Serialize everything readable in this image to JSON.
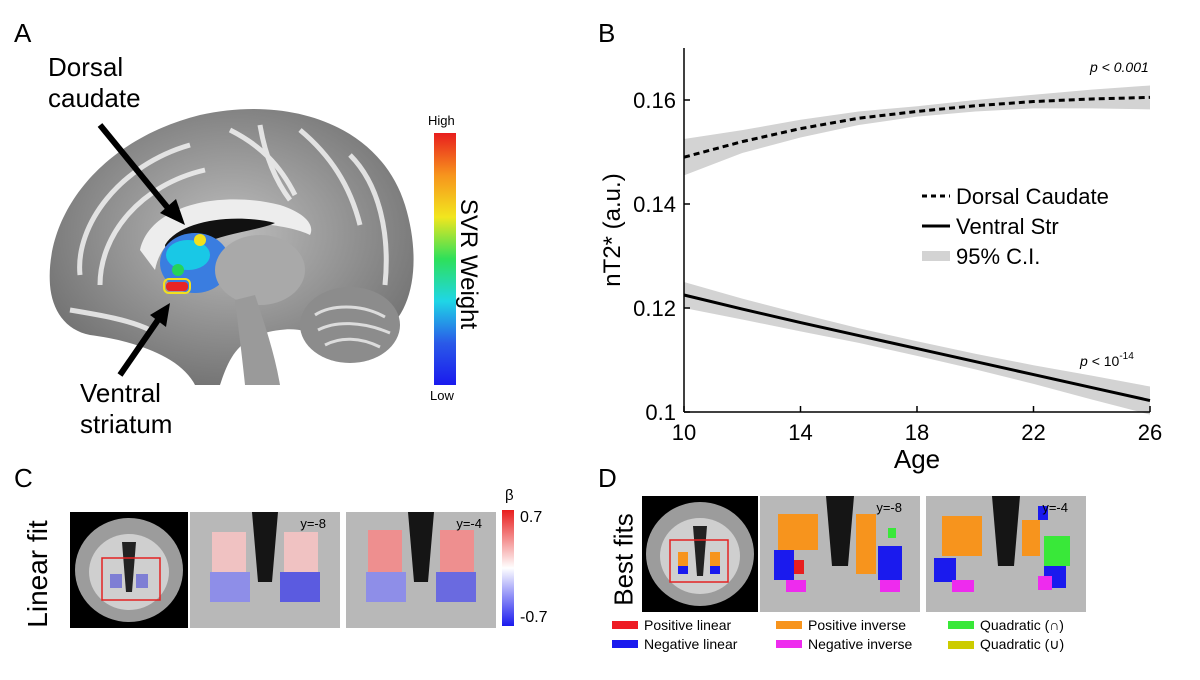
{
  "panels": {
    "a": {
      "letter": "A",
      "label_top_line1": "Dorsal",
      "label_top_line2": "caudate",
      "label_bottom_line1": "Ventral",
      "label_bottom_line2": "striatum",
      "colorbar_high": "High",
      "colorbar_low": "Low",
      "colorbar_title": "SVR Weight"
    },
    "b": {
      "letter": "B"
    },
    "c": {
      "letter": "C",
      "row_label": "Linear fit",
      "slice1": "y=-8",
      "slice2": "y=-4",
      "beta_symbol": "β",
      "beta_max": "0.7",
      "beta_min": "-0.7"
    },
    "d": {
      "letter": "D",
      "row_label": "Best fits",
      "slice1": "y=-8",
      "slice2": "y=-4",
      "legend": [
        {
          "label": "Positive linear",
          "color": "#ee1c24"
        },
        {
          "label": "Positive inverse",
          "color": "#f7941d"
        },
        {
          "label": "Quadratic (∩)",
          "color": "#39e839"
        },
        {
          "label": "Negative linear",
          "color": "#1a1aee"
        },
        {
          "label": "Negative inverse",
          "color": "#ee2bee"
        },
        {
          "label": "Quadratic (∪)",
          "color": "#cccc00"
        }
      ]
    }
  },
  "chart_data": {
    "type": "line",
    "xlabel": "Age",
    "ylabel": "nT2* (a.u.)",
    "xlim": [
      10,
      26
    ],
    "ylim": [
      0.1,
      0.17
    ],
    "xticks": [
      "10",
      "14",
      "18",
      "22",
      "26"
    ],
    "yticks": [
      "0.1",
      "0.12",
      "0.14",
      "0.16"
    ],
    "legend_position": "right-middle",
    "series": [
      {
        "name": "Dorsal Caudate",
        "style": "dashed",
        "x": [
          10,
          12,
          14,
          16,
          18,
          20,
          22,
          24,
          26
        ],
        "y": [
          0.149,
          0.152,
          0.1545,
          0.1565,
          0.1578,
          0.1589,
          0.1597,
          0.1602,
          0.1605
        ],
        "ci_lower": [
          0.1455,
          0.1498,
          0.1528,
          0.1552,
          0.1568,
          0.1578,
          0.1584,
          0.1584,
          0.1582
        ],
        "ci_upper": [
          0.1525,
          0.1542,
          0.1562,
          0.1578,
          0.1588,
          0.16,
          0.161,
          0.162,
          0.1628
        ],
        "annotation": "p < 0.001"
      },
      {
        "name": "Ventral Str",
        "style": "solid",
        "x": [
          10,
          12,
          14,
          16,
          18,
          20,
          22,
          24,
          26
        ],
        "y": [
          0.1225,
          0.1198,
          0.1172,
          0.1147,
          0.1122,
          0.1097,
          0.1072,
          0.1047,
          0.1022
        ],
        "ci_lower": [
          0.12,
          0.1178,
          0.1155,
          0.1133,
          0.1108,
          0.1082,
          0.1054,
          0.1024,
          0.0995
        ],
        "ci_upper": [
          0.125,
          0.1218,
          0.1189,
          0.1161,
          0.1136,
          0.1112,
          0.109,
          0.107,
          0.1049
        ],
        "annotation_p": "p",
        "annotation_rel": "< 10",
        "annotation_exp": "-14"
      }
    ],
    "ci_label": "95% C.I."
  }
}
